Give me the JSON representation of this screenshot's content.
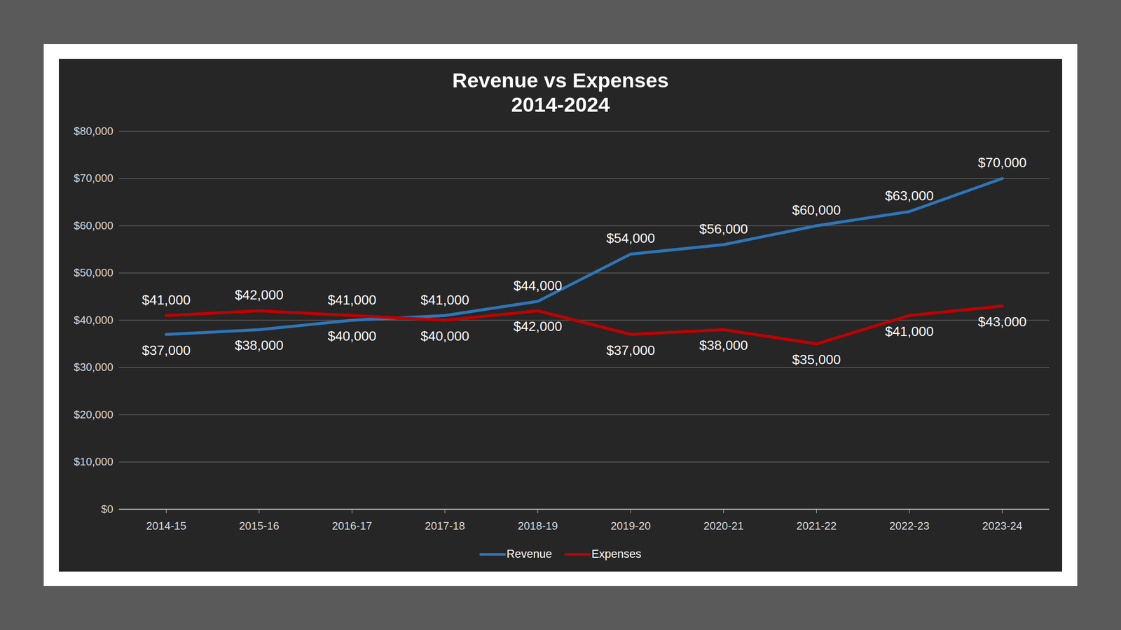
{
  "chart_data": {
    "type": "line",
    "title": "Revenue vs Expenses",
    "subtitle": "2014-2024",
    "categories": [
      "2014-15",
      "2015-16",
      "2016-17",
      "2017-18",
      "2018-19",
      "2019-20",
      "2020-21",
      "2021-22",
      "2022-23",
      "2023-24"
    ],
    "series": [
      {
        "name": "Revenue",
        "color": "#2e75b6",
        "values": [
          37000,
          38000,
          40000,
          41000,
          44000,
          54000,
          56000,
          60000,
          63000,
          70000
        ],
        "value_labels": [
          "$37,000",
          "$38,000",
          "$40,000",
          "$41,000",
          "$44,000",
          "$54,000",
          "$56,000",
          "$60,000",
          "$63,000",
          "$70,000"
        ]
      },
      {
        "name": "Expenses",
        "color": "#c00000",
        "values": [
          41000,
          42000,
          41000,
          40000,
          42000,
          37000,
          38000,
          35000,
          41000,
          43000
        ],
        "value_labels": [
          "$41,000",
          "$42,000",
          "$41,000",
          "$40,000",
          "$42,000",
          "$37,000",
          "$38,000",
          "$35,000",
          "$41,000",
          "$43,000"
        ]
      }
    ],
    "ylim": [
      0,
      80000
    ],
    "yticks": [
      {
        "value": 0,
        "label": "$0"
      },
      {
        "value": 10000,
        "label": "$10,000"
      },
      {
        "value": 20000,
        "label": "$20,000"
      },
      {
        "value": 30000,
        "label": "$30,000"
      },
      {
        "value": 40000,
        "label": "$40,000"
      },
      {
        "value": 50000,
        "label": "$50,000"
      },
      {
        "value": 60000,
        "label": "$60,000"
      },
      {
        "value": 70000,
        "label": "$70,000"
      },
      {
        "value": 80000,
        "label": "$80,000"
      }
    ],
    "grid": true,
    "legend": "bottom",
    "data_labels": true
  }
}
